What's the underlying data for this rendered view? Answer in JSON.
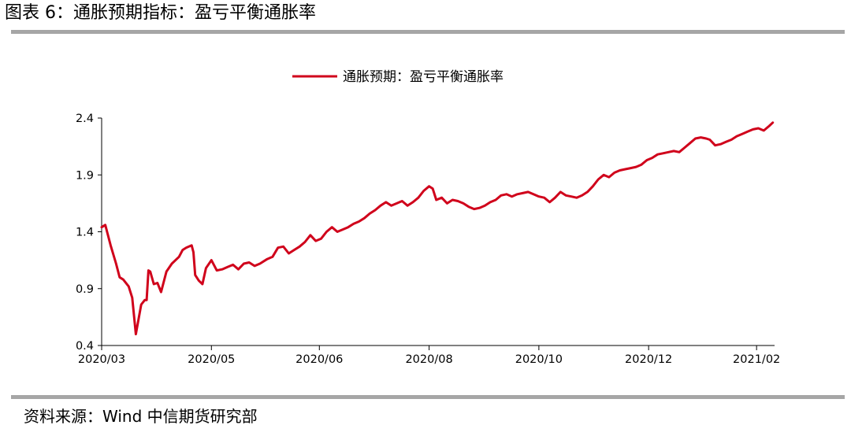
{
  "figure": {
    "title": "图表 6：通胀预期指标：盈亏平衡通胀率",
    "source": "资料来源：Wind 中信期货研究部"
  },
  "colors": {
    "series": "#d0021b",
    "axis": "#000000",
    "rule": "#a6a6a6"
  },
  "chart_data": {
    "type": "line",
    "title": "",
    "xlabel": "",
    "ylabel": "",
    "ylim": [
      0.4,
      2.4
    ],
    "yticks": [
      "0.4",
      "0.9",
      "1.4",
      "1.9",
      "2.4"
    ],
    "xlim": [
      "2020-03-01",
      "2021-03-10"
    ],
    "xticks": [
      {
        "date": "2020-03-01",
        "label": "2020/03"
      },
      {
        "date": "2020-05-01",
        "label": "2020/05"
      },
      {
        "date": "2020-06-30",
        "label": "2020/06"
      },
      {
        "date": "2020-08-30",
        "label": "2020/08"
      },
      {
        "date": "2020-10-30",
        "label": "2020/10"
      },
      {
        "date": "2020-12-30",
        "label": "2020/12"
      },
      {
        "date": "2021-02-28",
        "label": "2021/02"
      }
    ],
    "grid": false,
    "legend": "top-center",
    "series": [
      {
        "name": "通胀预期：盈亏平衡通胀率",
        "points": [
          [
            "2020-03-01",
            1.44
          ],
          [
            "2020-03-03",
            1.46
          ],
          [
            "2020-03-06",
            1.28
          ],
          [
            "2020-03-09",
            1.12
          ],
          [
            "2020-03-11",
            1.0
          ],
          [
            "2020-03-13",
            0.98
          ],
          [
            "2020-03-16",
            0.92
          ],
          [
            "2020-03-18",
            0.82
          ],
          [
            "2020-03-19",
            0.66
          ],
          [
            "2020-03-20",
            0.5
          ],
          [
            "2020-03-23",
            0.76
          ],
          [
            "2020-03-25",
            0.8
          ],
          [
            "2020-03-26",
            0.8
          ],
          [
            "2020-03-27",
            1.06
          ],
          [
            "2020-03-28",
            1.05
          ],
          [
            "2020-03-30",
            0.94
          ],
          [
            "2020-04-01",
            0.95
          ],
          [
            "2020-04-03",
            0.87
          ],
          [
            "2020-04-06",
            1.05
          ],
          [
            "2020-04-09",
            1.12
          ],
          [
            "2020-04-13",
            1.18
          ],
          [
            "2020-04-15",
            1.24
          ],
          [
            "2020-04-17",
            1.26
          ],
          [
            "2020-04-20",
            1.28
          ],
          [
            "2020-04-21",
            1.22
          ],
          [
            "2020-04-22",
            1.02
          ],
          [
            "2020-04-24",
            0.97
          ],
          [
            "2020-04-26",
            0.94
          ],
          [
            "2020-04-28",
            1.08
          ],
          [
            "2020-05-01",
            1.15
          ],
          [
            "2020-05-04",
            1.06
          ],
          [
            "2020-05-07",
            1.07
          ],
          [
            "2020-05-10",
            1.09
          ],
          [
            "2020-05-13",
            1.11
          ],
          [
            "2020-05-16",
            1.07
          ],
          [
            "2020-05-19",
            1.12
          ],
          [
            "2020-05-22",
            1.13
          ],
          [
            "2020-05-25",
            1.1
          ],
          [
            "2020-05-28",
            1.12
          ],
          [
            "2020-06-01",
            1.16
          ],
          [
            "2020-06-04",
            1.18
          ],
          [
            "2020-06-07",
            1.26
          ],
          [
            "2020-06-10",
            1.27
          ],
          [
            "2020-06-13",
            1.21
          ],
          [
            "2020-06-16",
            1.24
          ],
          [
            "2020-06-19",
            1.27
          ],
          [
            "2020-06-22",
            1.31
          ],
          [
            "2020-06-25",
            1.37
          ],
          [
            "2020-06-28",
            1.32
          ],
          [
            "2020-07-01",
            1.34
          ],
          [
            "2020-07-04",
            1.4
          ],
          [
            "2020-07-07",
            1.44
          ],
          [
            "2020-07-10",
            1.4
          ],
          [
            "2020-07-13",
            1.42
          ],
          [
            "2020-07-16",
            1.44
          ],
          [
            "2020-07-19",
            1.47
          ],
          [
            "2020-07-22",
            1.49
          ],
          [
            "2020-07-25",
            1.52
          ],
          [
            "2020-07-28",
            1.56
          ],
          [
            "2020-07-31",
            1.59
          ],
          [
            "2020-08-03",
            1.63
          ],
          [
            "2020-08-06",
            1.66
          ],
          [
            "2020-08-09",
            1.63
          ],
          [
            "2020-08-12",
            1.65
          ],
          [
            "2020-08-15",
            1.67
          ],
          [
            "2020-08-18",
            1.63
          ],
          [
            "2020-08-21",
            1.66
          ],
          [
            "2020-08-24",
            1.7
          ],
          [
            "2020-08-27",
            1.76
          ],
          [
            "2020-08-30",
            1.8
          ],
          [
            "2020-09-01",
            1.78
          ],
          [
            "2020-09-03",
            1.68
          ],
          [
            "2020-09-06",
            1.7
          ],
          [
            "2020-09-09",
            1.65
          ],
          [
            "2020-09-12",
            1.68
          ],
          [
            "2020-09-15",
            1.67
          ],
          [
            "2020-09-18",
            1.65
          ],
          [
            "2020-09-21",
            1.62
          ],
          [
            "2020-09-24",
            1.6
          ],
          [
            "2020-09-27",
            1.61
          ],
          [
            "2020-09-30",
            1.63
          ],
          [
            "2020-10-03",
            1.66
          ],
          [
            "2020-10-06",
            1.68
          ],
          [
            "2020-10-09",
            1.72
          ],
          [
            "2020-10-12",
            1.73
          ],
          [
            "2020-10-15",
            1.71
          ],
          [
            "2020-10-18",
            1.73
          ],
          [
            "2020-10-21",
            1.74
          ],
          [
            "2020-10-24",
            1.75
          ],
          [
            "2020-10-27",
            1.73
          ],
          [
            "2020-10-30",
            1.71
          ],
          [
            "2020-11-02",
            1.7
          ],
          [
            "2020-11-05",
            1.66
          ],
          [
            "2020-11-08",
            1.7
          ],
          [
            "2020-11-11",
            1.75
          ],
          [
            "2020-11-14",
            1.72
          ],
          [
            "2020-11-17",
            1.71
          ],
          [
            "2020-11-20",
            1.7
          ],
          [
            "2020-11-23",
            1.72
          ],
          [
            "2020-11-26",
            1.75
          ],
          [
            "2020-11-29",
            1.8
          ],
          [
            "2020-12-02",
            1.86
          ],
          [
            "2020-12-05",
            1.9
          ],
          [
            "2020-12-08",
            1.88
          ],
          [
            "2020-12-11",
            1.92
          ],
          [
            "2020-12-14",
            1.94
          ],
          [
            "2020-12-17",
            1.95
          ],
          [
            "2020-12-20",
            1.96
          ],
          [
            "2020-12-23",
            1.97
          ],
          [
            "2020-12-26",
            1.99
          ],
          [
            "2020-12-29",
            2.03
          ],
          [
            "2021-01-01",
            2.05
          ],
          [
            "2021-01-04",
            2.08
          ],
          [
            "2021-01-07",
            2.09
          ],
          [
            "2021-01-10",
            2.1
          ],
          [
            "2021-01-13",
            2.11
          ],
          [
            "2021-01-16",
            2.1
          ],
          [
            "2021-01-19",
            2.14
          ],
          [
            "2021-01-22",
            2.18
          ],
          [
            "2021-01-25",
            2.22
          ],
          [
            "2021-01-28",
            2.23
          ],
          [
            "2021-01-31",
            2.22
          ],
          [
            "2021-02-02",
            2.21
          ],
          [
            "2021-02-05",
            2.16
          ],
          [
            "2021-02-08",
            2.17
          ],
          [
            "2021-02-11",
            2.19
          ],
          [
            "2021-02-14",
            2.21
          ],
          [
            "2021-02-17",
            2.24
          ],
          [
            "2021-02-20",
            2.26
          ],
          [
            "2021-02-23",
            2.28
          ],
          [
            "2021-02-26",
            2.3
          ],
          [
            "2021-03-01",
            2.31
          ],
          [
            "2021-03-04",
            2.29
          ],
          [
            "2021-03-07",
            2.33
          ],
          [
            "2021-03-09",
            2.36
          ]
        ]
      }
    ]
  }
}
